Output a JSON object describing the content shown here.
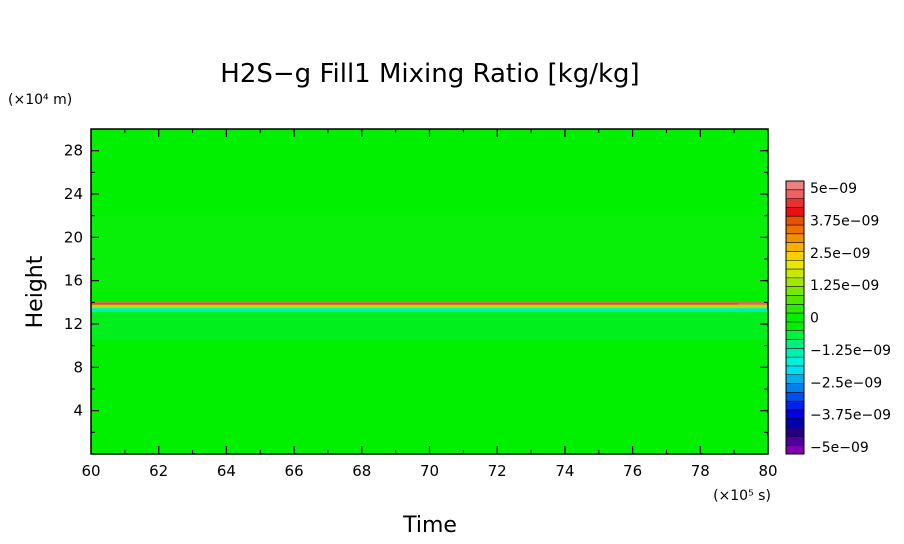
{
  "chart_data": {
    "type": "heatmap",
    "title": "H2S−g Fill1 Mixing Ratio [kg/kg]",
    "xlabel": "Time",
    "ylabel": "Height",
    "x_unit": "(×10⁵ s)",
    "y_unit": "(×10⁴ m)",
    "xlim": [
      60,
      80
    ],
    "ylim": [
      0,
      30
    ],
    "x_ticks": [
      "60",
      "62",
      "64",
      "66",
      "68",
      "70",
      "72",
      "74",
      "76",
      "78",
      "80"
    ],
    "y_ticks": [
      "4",
      "8",
      "12",
      "16",
      "20",
      "24",
      "28"
    ],
    "x_tick_values": [
      60,
      62,
      64,
      66,
      68,
      70,
      72,
      74,
      76,
      78,
      80
    ],
    "y_tick_values": [
      4,
      8,
      12,
      16,
      20,
      24,
      28
    ],
    "background_value": 0,
    "features": [
      {
        "y": 13.9,
        "value": 4.5e-09
      },
      {
        "y": 13.6,
        "value": 1.5e-09
      },
      {
        "y": 13.3,
        "value": -1.5e-09
      }
    ],
    "colorbar": {
      "min": -5e-09,
      "max": 5e-09,
      "labels": [
        "5e−09",
        "3.75e−09",
        "2.5e−09",
        "1.25e−09",
        "0",
        "−1.25e−09",
        "−2.5e−09",
        "−3.75e−09",
        "−5e−09"
      ],
      "colors": [
        "#f08080",
        "#f06060",
        "#e83030",
        "#e81010",
        "#e85000",
        "#ee7000",
        "#f09000",
        "#f8b000",
        "#f8d000",
        "#e8e800",
        "#c8e800",
        "#a0e800",
        "#78e800",
        "#50e800",
        "#30e800",
        "#00f000",
        "#00f000",
        "#00f040",
        "#00f080",
        "#00f0b0",
        "#00f0e0",
        "#00e0f0",
        "#00b0f0",
        "#0080f0",
        "#0050f0",
        "#0020f0",
        "#0000e0",
        "#0000b0",
        "#200080",
        "#5000a0",
        "#8000b0"
      ]
    }
  }
}
